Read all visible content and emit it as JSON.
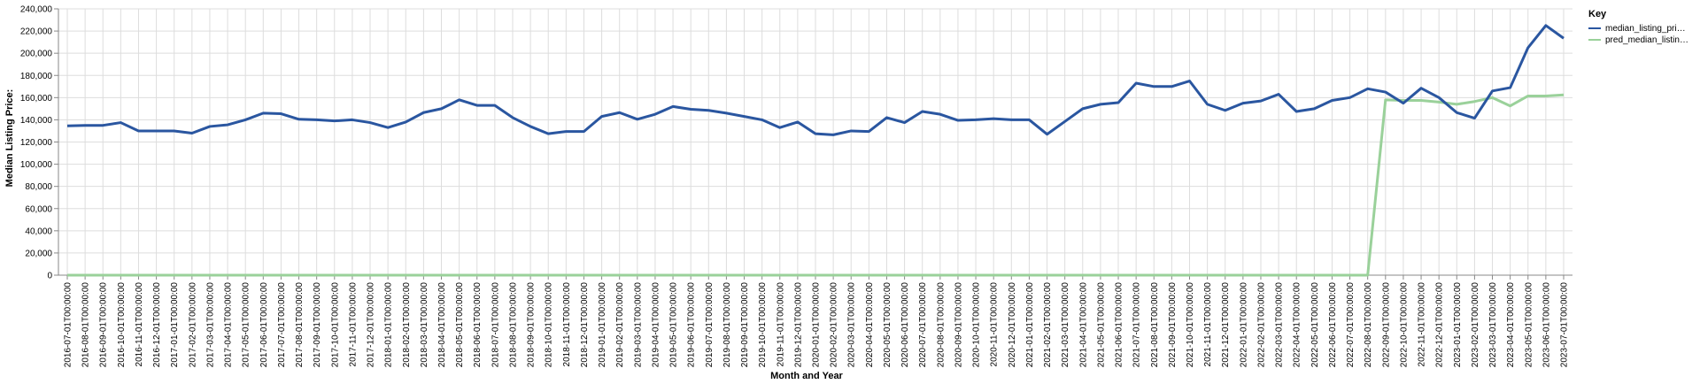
{
  "chart_data": {
    "type": "line",
    "xlabel": "Month and Year",
    "ylabel": "Median Listing Price:",
    "ylim": [
      0,
      240000
    ],
    "yticks": [
      "0",
      "20,000",
      "40,000",
      "60,000",
      "80,000",
      "100,000",
      "120,000",
      "140,000",
      "160,000",
      "180,000",
      "200,000",
      "220,000",
      "240,000"
    ],
    "ytick_values": [
      0,
      20000,
      40000,
      60000,
      80000,
      100000,
      120000,
      140000,
      160000,
      180000,
      200000,
      220000,
      240000
    ],
    "grid": true,
    "legend": {
      "title": "Key",
      "placement": "right"
    },
    "x": [
      "2016-07-01T00:00:00",
      "2016-08-01T00:00:00",
      "2016-09-01T00:00:00",
      "2016-10-01T00:00:00",
      "2016-11-01T00:00:00",
      "2016-12-01T00:00:00",
      "2017-01-01T00:00:00",
      "2017-02-01T00:00:00",
      "2017-03-01T00:00:00",
      "2017-04-01T00:00:00",
      "2017-05-01T00:00:00",
      "2017-06-01T00:00:00",
      "2017-07-01T00:00:00",
      "2017-08-01T00:00:00",
      "2017-09-01T00:00:00",
      "2017-10-01T00:00:00",
      "2017-11-01T00:00:00",
      "2017-12-01T00:00:00",
      "2018-01-01T00:00:00",
      "2018-02-01T00:00:00",
      "2018-03-01T00:00:00",
      "2018-04-01T00:00:00",
      "2018-05-01T00:00:00",
      "2018-06-01T00:00:00",
      "2018-07-01T00:00:00",
      "2018-08-01T00:00:00",
      "2018-09-01T00:00:00",
      "2018-10-01T00:00:00",
      "2018-11-01T00:00:00",
      "2018-12-01T00:00:00",
      "2019-01-01T00:00:00",
      "2019-02-01T00:00:00",
      "2019-03-01T00:00:00",
      "2019-04-01T00:00:00",
      "2019-05-01T00:00:00",
      "2019-06-01T00:00:00",
      "2019-07-01T00:00:00",
      "2019-08-01T00:00:00",
      "2019-09-01T00:00:00",
      "2019-10-01T00:00:00",
      "2019-11-01T00:00:00",
      "2019-12-01T00:00:00",
      "2020-01-01T00:00:00",
      "2020-02-01T00:00:00",
      "2020-03-01T00:00:00",
      "2020-04-01T00:00:00",
      "2020-05-01T00:00:00",
      "2020-06-01T00:00:00",
      "2020-07-01T00:00:00",
      "2020-08-01T00:00:00",
      "2020-09-01T00:00:00",
      "2020-10-01T00:00:00",
      "2020-11-01T00:00:00",
      "2020-12-01T00:00:00",
      "2021-01-01T00:00:00",
      "2021-02-01T00:00:00",
      "2021-03-01T00:00:00",
      "2021-04-01T00:00:00",
      "2021-05-01T00:00:00",
      "2021-06-01T00:00:00",
      "2021-07-01T00:00:00",
      "2021-08-01T00:00:00",
      "2021-09-01T00:00:00",
      "2021-10-01T00:00:00",
      "2021-11-01T00:00:00",
      "2021-12-01T00:00:00",
      "2022-01-01T00:00:00",
      "2022-02-01T00:00:00",
      "2022-03-01T00:00:00",
      "2022-04-01T00:00:00",
      "2022-05-01T00:00:00",
      "2022-06-01T00:00:00",
      "2022-07-01T00:00:00",
      "2022-08-01T00:00:00",
      "2022-09-01T00:00:00",
      "2022-10-01T00:00:00",
      "2022-11-01T00:00:00",
      "2022-12-01T00:00:00",
      "2023-01-01T00:00:00",
      "2023-02-01T00:00:00",
      "2023-03-01T00:00:00",
      "2023-04-01T00:00:00",
      "2023-05-01T00:00:00",
      "2023-06-01T00:00:00",
      "2023-07-01T00:00:00"
    ],
    "series": [
      {
        "name": "median_listing_pri…",
        "color": "#2a56a0",
        "values": [
          134500,
          135000,
          135000,
          137500,
          130000,
          130000,
          130000,
          128000,
          134000,
          135500,
          140000,
          146000,
          145500,
          140500,
          140000,
          139000,
          140000,
          137500,
          133000,
          138000,
          146500,
          150000,
          158000,
          153000,
          153000,
          142000,
          134000,
          127500,
          129500,
          129500,
          143000,
          146500,
          140500,
          145000,
          152000,
          149500,
          148500,
          146000,
          143000,
          140000,
          133000,
          138000,
          127500,
          126500,
          130000,
          129500,
          142000,
          137500,
          147500,
          145000,
          139500,
          140000,
          141000,
          140000,
          140000,
          127000,
          138500,
          150000,
          154000,
          155500,
          173000,
          170000,
          170000,
          175000,
          154000,
          148500,
          155000,
          157000,
          163000,
          147500,
          150000,
          157500,
          160000,
          168000,
          165000,
          155000,
          168500,
          160000,
          146500,
          141500,
          166000,
          169000,
          205000,
          225000,
          213500
        ]
      },
      {
        "name": "pred_median_listin…",
        "color": "#9ad19a",
        "values": [
          0,
          0,
          0,
          0,
          0,
          0,
          0,
          0,
          0,
          0,
          0,
          0,
          0,
          0,
          0,
          0,
          0,
          0,
          0,
          0,
          0,
          0,
          0,
          0,
          0,
          0,
          0,
          0,
          0,
          0,
          0,
          0,
          0,
          0,
          0,
          0,
          0,
          0,
          0,
          0,
          0,
          0,
          0,
          0,
          0,
          0,
          0,
          0,
          0,
          0,
          0,
          0,
          0,
          0,
          0,
          0,
          0,
          0,
          0,
          0,
          0,
          0,
          0,
          0,
          0,
          0,
          0,
          0,
          0,
          0,
          0,
          0,
          0,
          0,
          158000,
          157500,
          157500,
          156000,
          154000,
          156500,
          160000,
          152500,
          161500,
          161500,
          162500
        ]
      }
    ]
  }
}
